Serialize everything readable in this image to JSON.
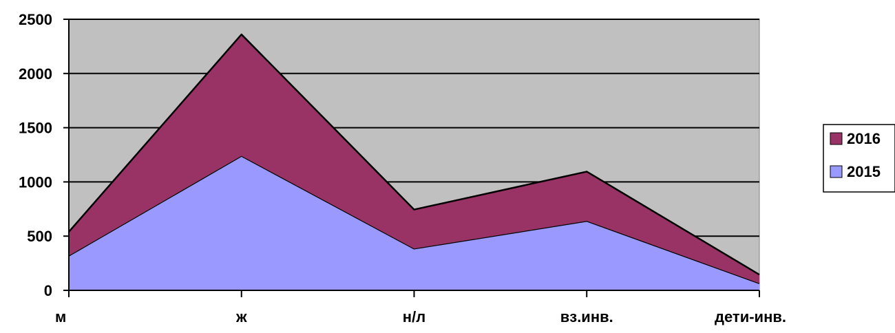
{
  "chart_data": {
    "type": "area",
    "stacked": true,
    "categories": [
      "м",
      "ж",
      "н/л",
      "вз.инв.",
      "дети-инв."
    ],
    "series": [
      {
        "name": "2015",
        "values": [
          320,
          1240,
          385,
          640,
          65
        ],
        "color": "#9999ff"
      },
      {
        "name": "2016",
        "values": [
          220,
          1120,
          360,
          455,
          80
        ],
        "color": "#993366"
      }
    ],
    "ylim": [
      0,
      2500
    ],
    "yticks": [
      0,
      500,
      1000,
      1500,
      2000,
      2500
    ],
    "ytick_labels": [
      "0",
      "500",
      "1000",
      "1500",
      "2000",
      "2500"
    ],
    "title": "",
    "xlabel": "",
    "ylabel": "",
    "grid": true,
    "plot_background": "#c0c0c0",
    "legend": {
      "placement": "right",
      "entries": [
        {
          "label": "2016",
          "color": "#993366"
        },
        {
          "label": "2015",
          "color": "#9999ff"
        }
      ]
    }
  }
}
